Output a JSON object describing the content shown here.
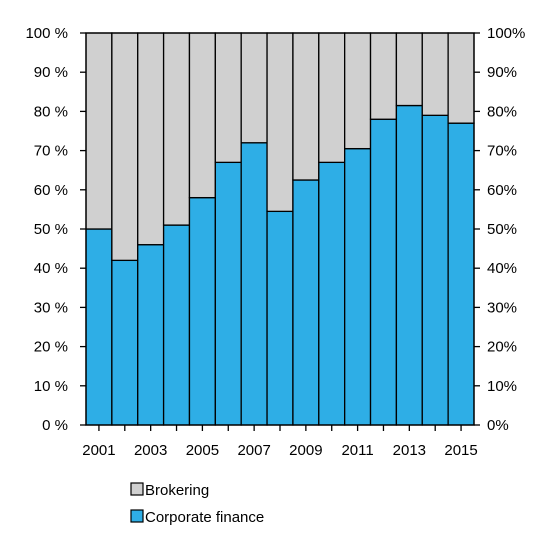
{
  "chart_data": {
    "type": "bar",
    "stacked": true,
    "percent_stacked": true,
    "x": [
      2001,
      2002,
      2003,
      2004,
      2005,
      2006,
      2007,
      2008,
      2009,
      2010,
      2011,
      2012,
      2013,
      2014,
      2015
    ],
    "x_tick_labels": [
      "2001",
      "2003",
      "2005",
      "2007",
      "2009",
      "2011",
      "2013",
      "2015"
    ],
    "y_left_tick_labels": [
      "0 %",
      "10 %",
      "20 %",
      "30 %",
      "40 %",
      "50 %",
      "60 %",
      "70 %",
      "80 %",
      "90 %",
      "100 %"
    ],
    "y_right_tick_labels": [
      "0%",
      "10%",
      "20%",
      "30%",
      "40%",
      "50%",
      "60%",
      "70%",
      "80%",
      "90%",
      "100%"
    ],
    "ylim": [
      0,
      100
    ],
    "grid": false,
    "series": [
      {
        "name": "Corporate finance",
        "color": "#2eaee6",
        "values": [
          50,
          42,
          46,
          51,
          58,
          67,
          72,
          54.5,
          62.5,
          67,
          70.5,
          78,
          81.5,
          79,
          77
        ]
      },
      {
        "name": "Brokering",
        "color": "#d0d0d0",
        "values": [
          50,
          58,
          54,
          49,
          42,
          33,
          28,
          45.5,
          37.5,
          33,
          29.5,
          22,
          18.5,
          21,
          23
        ]
      }
    ],
    "legend": {
      "placement": "bottom",
      "items": [
        {
          "label": "Brokering",
          "color": "#d0d0d0"
        },
        {
          "label": "Corporate finance",
          "color": "#2eaee6"
        }
      ]
    },
    "title": "",
    "xlabel": "",
    "ylabel": ""
  }
}
